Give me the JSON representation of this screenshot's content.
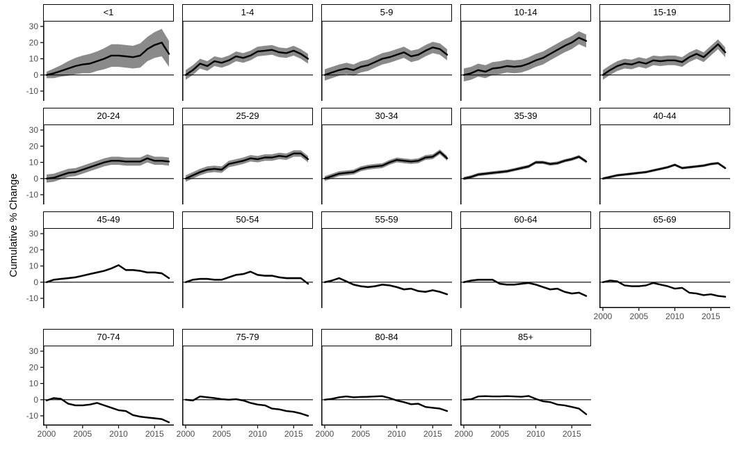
{
  "figure": {
    "ylabel": "Cumulative % Change",
    "y_ticks": [
      30,
      20,
      10,
      0,
      -10
    ],
    "x_ticks": [
      2000,
      2005,
      2010,
      2015
    ],
    "x_range": [
      2000,
      2017
    ],
    "y_range": [
      -16,
      33
    ],
    "colors": {
      "line": "#000000",
      "ribbon": "#8a8a8a",
      "axis": "#000000",
      "zero_line": "#000000",
      "tick_label": "#4d4d4d",
      "strip_border": "#000000",
      "background": "#ffffff"
    }
  },
  "chart_data": {
    "type": "line",
    "title": "",
    "xlabel": "",
    "ylabel": "Cumulative % Change",
    "x": [
      2000,
      2001,
      2002,
      2003,
      2004,
      2005,
      2006,
      2007,
      2008,
      2009,
      2010,
      2011,
      2012,
      2013,
      2014,
      2015,
      2016,
      2017
    ],
    "legend": "none",
    "grid": false,
    "facets": [
      {
        "label": "<1",
        "values": [
          0,
          1,
          2.5,
          4,
          5.5,
          6.5,
          7,
          8.5,
          10,
          12,
          12,
          11.5,
          11,
          12,
          16,
          18.5,
          20,
          13
        ],
        "ribbon_halfwidth": [
          2,
          3,
          3.5,
          4.5,
          5,
          5.5,
          6,
          6,
          6.5,
          7,
          7,
          7,
          7,
          7.5,
          7.5,
          8,
          8.5,
          8
        ]
      },
      {
        "label": "1-4",
        "values": [
          0,
          3,
          7,
          5.5,
          8.5,
          7.5,
          9,
          11.5,
          10.5,
          12,
          14.5,
          15,
          15.5,
          14,
          13.5,
          15,
          13,
          10
        ],
        "ribbon_halfwidth": 3
      },
      {
        "label": "5-9",
        "values": [
          0,
          1.5,
          3,
          4,
          3,
          5,
          6,
          8,
          10,
          11,
          12.5,
          14,
          11.5,
          12.5,
          15,
          17,
          16,
          12.5
        ],
        "ribbon_halfwidth": 3.5
      },
      {
        "label": "10-14",
        "values": [
          0,
          1,
          3,
          2,
          4,
          4.5,
          5.5,
          5,
          5.5,
          7,
          9,
          10.5,
          13,
          15.5,
          18,
          20,
          23,
          21
        ],
        "ribbon_halfwidth": 4
      },
      {
        "label": "15-19",
        "values": [
          0,
          3,
          5.5,
          7,
          6.5,
          8,
          7,
          9,
          8.5,
          9,
          9,
          8,
          11,
          13,
          11,
          15,
          19,
          14
        ],
        "ribbon_halfwidth": 3
      },
      {
        "label": "20-24",
        "values": [
          0,
          0.5,
          2,
          3.5,
          4,
          5.5,
          7,
          8.5,
          10,
          11,
          11,
          10.5,
          10.5,
          10.5,
          12.5,
          11,
          11,
          10.5
        ],
        "ribbon_halfwidth": 2.5
      },
      {
        "label": "25-29",
        "values": [
          0,
          2,
          4,
          5.5,
          6,
          5.5,
          9,
          10,
          11,
          12.5,
          12,
          13,
          13,
          14,
          13.5,
          15.5,
          15.5,
          12
        ],
        "ribbon_halfwidth": 2
      },
      {
        "label": "30-34",
        "values": [
          0,
          1.5,
          3,
          3.5,
          4,
          6,
          7,
          7.5,
          8,
          10,
          11.5,
          11,
          10.5,
          11,
          13,
          13.5,
          16.5,
          12.5
        ],
        "ribbon_halfwidth": 1.5
      },
      {
        "label": "35-39",
        "values": [
          0,
          1,
          2.5,
          3,
          3.5,
          4,
          4.5,
          5.5,
          6.5,
          7.5,
          10,
          10,
          9,
          9.5,
          11,
          12,
          13.5,
          10.5
        ],
        "ribbon_halfwidth": 1
      },
      {
        "label": "40-44",
        "values": [
          0,
          1,
          2,
          2.5,
          3,
          3.5,
          4,
          5,
          6,
          7,
          8.5,
          6.5,
          7,
          7.5,
          8,
          9,
          9.5,
          6.5
        ],
        "ribbon_halfwidth": 0.8
      },
      {
        "label": "45-49",
        "values": [
          0,
          1.5,
          2,
          2.5,
          3,
          4,
          5,
          6,
          7,
          8.5,
          10.5,
          7.5,
          7.5,
          7,
          6,
          6,
          5.5,
          2.5
        ],
        "ribbon_halfwidth": 0.6
      },
      {
        "label": "50-54",
        "values": [
          0,
          1.5,
          2,
          2,
          1.5,
          1.5,
          3,
          4.5,
          5,
          6.5,
          4.5,
          4,
          4,
          3,
          2.5,
          2.5,
          2.5,
          -1
        ],
        "ribbon_halfwidth": 0.6
      },
      {
        "label": "55-59",
        "values": [
          0,
          1,
          2.5,
          0.5,
          -1.5,
          -2.5,
          -3,
          -2.5,
          -1.5,
          -2,
          -3,
          -4.5,
          -4,
          -5.5,
          -6,
          -5,
          -6,
          -7.5
        ],
        "ribbon_halfwidth": 0.6
      },
      {
        "label": "60-64",
        "values": [
          0,
          1,
          1.5,
          1.5,
          1.5,
          -1,
          -1.5,
          -1.5,
          -1,
          -0.5,
          -1.5,
          -3,
          -4.5,
          -4,
          -6,
          -7,
          -6.5,
          -8.5
        ],
        "ribbon_halfwidth": 0.6
      },
      {
        "label": "65-69",
        "values": [
          0,
          1,
          0.5,
          -2,
          -2.5,
          -2.5,
          -2,
          -0.5,
          -1.5,
          -2.5,
          -4,
          -3.5,
          -6.5,
          -7,
          -8,
          -7.5,
          -8.5,
          -9
        ],
        "ribbon_halfwidth": 0.5
      },
      {
        "label": "70-74",
        "values": [
          -0.5,
          1,
          0.5,
          -2.5,
          -3.5,
          -3.5,
          -3,
          -2,
          -3.5,
          -5,
          -6.5,
          -7,
          -9.5,
          -10.5,
          -11,
          -11.5,
          -12,
          -14
        ],
        "ribbon_halfwidth": 0.5
      },
      {
        "label": "75-79",
        "values": [
          0,
          -0.5,
          2,
          1.5,
          1,
          0.3,
          0,
          0.3,
          -0.5,
          -2,
          -3,
          -3.5,
          -5.5,
          -6,
          -7,
          -7.5,
          -8.5,
          -10
        ],
        "ribbon_halfwidth": 0.5
      },
      {
        "label": "80-84",
        "values": [
          0,
          0.5,
          1.5,
          2,
          1.5,
          1.7,
          1.8,
          2,
          2.2,
          1,
          -0.5,
          -1.5,
          -2.8,
          -2.5,
          -4.5,
          -5,
          -5.5,
          -7
        ],
        "ribbon_halfwidth": 0.5
      },
      {
        "label": "85+",
        "values": [
          0,
          0.3,
          2,
          2.2,
          2,
          2,
          2.2,
          2,
          1.8,
          2.3,
          0.5,
          -1,
          -1.5,
          -3,
          -3.5,
          -4.5,
          -5.5,
          -9
        ],
        "ribbon_halfwidth": 0.4
      }
    ]
  }
}
